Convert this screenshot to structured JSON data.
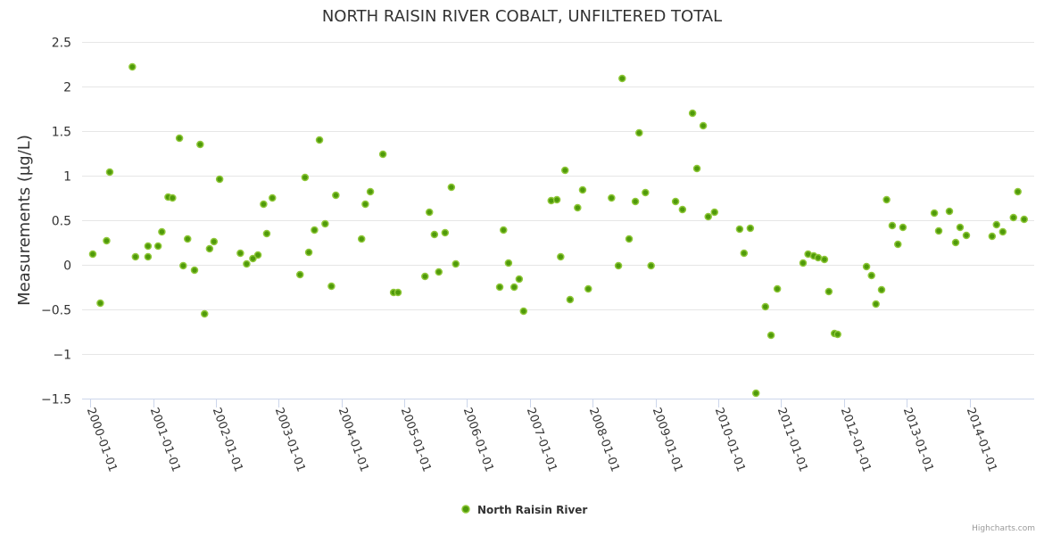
{
  "chart_data": {
    "type": "scatter",
    "title": "NORTH RAISIN RIVER COBALT, UNFILTERED TOTAL",
    "xlabel": "",
    "ylabel": "Measurements (µg/L)",
    "xlim": [
      1999.87,
      2015.03
    ],
    "ylim": [
      -1.5,
      2.5
    ],
    "yticks": [
      2.5,
      2,
      1.5,
      1,
      0.5,
      0,
      -0.5,
      -1,
      -1.5
    ],
    "ytick_labels": [
      "2.5",
      "2",
      "1.5",
      "1",
      "0.5",
      "0",
      "−0.5",
      "−1",
      "−1.5"
    ],
    "xticks": [
      2000,
      2001,
      2002,
      2003,
      2004,
      2005,
      2006,
      2007,
      2008,
      2009,
      2010,
      2011,
      2012,
      2013,
      2014
    ],
    "xtick_labels": [
      "2000-01-01",
      "2001-01-01",
      "2002-01-01",
      "2003-01-01",
      "2004-01-01",
      "2005-01-01",
      "2006-01-01",
      "2007-01-01",
      "2008-01-01",
      "2009-01-01",
      "2010-01-01",
      "2011-01-01",
      "2012-01-01",
      "2013-01-01",
      "2014-01-01"
    ],
    "grid": true,
    "legend_position": "bottom-center",
    "series": [
      {
        "name": "North Raisin River",
        "color": "#4f9a0a",
        "border_color": "#90c83a",
        "points": [
          [
            2000.04,
            0.12
          ],
          [
            2000.16,
            -0.43
          ],
          [
            2000.26,
            0.27
          ],
          [
            2000.31,
            1.04
          ],
          [
            2000.67,
            2.22
          ],
          [
            2000.72,
            0.09
          ],
          [
            2000.92,
            0.21
          ],
          [
            2000.92,
            0.09
          ],
          [
            2001.08,
            0.21
          ],
          [
            2001.14,
            0.37
          ],
          [
            2001.24,
            0.76
          ],
          [
            2001.31,
            0.75
          ],
          [
            2001.42,
            1.42
          ],
          [
            2001.48,
            -0.01
          ],
          [
            2001.55,
            0.29
          ],
          [
            2001.66,
            -0.06
          ],
          [
            2001.75,
            1.35
          ],
          [
            2001.82,
            -0.55
          ],
          [
            2001.9,
            0.18
          ],
          [
            2001.97,
            0.26
          ],
          [
            2002.06,
            0.96
          ],
          [
            2002.39,
            0.13
          ],
          [
            2002.49,
            0.01
          ],
          [
            2002.59,
            0.07
          ],
          [
            2002.67,
            0.11
          ],
          [
            2002.76,
            0.68
          ],
          [
            2002.81,
            0.35
          ],
          [
            2002.9,
            0.75
          ],
          [
            2003.34,
            -0.11
          ],
          [
            2003.42,
            0.98
          ],
          [
            2003.48,
            0.14
          ],
          [
            2003.57,
            0.39
          ],
          [
            2003.65,
            1.4
          ],
          [
            2003.74,
            0.46
          ],
          [
            2003.84,
            -0.24
          ],
          [
            2003.91,
            0.78
          ],
          [
            2004.32,
            0.29
          ],
          [
            2004.38,
            0.68
          ],
          [
            2004.46,
            0.82
          ],
          [
            2004.66,
            1.24
          ],
          [
            2004.83,
            -0.31
          ],
          [
            2004.9,
            -0.31
          ],
          [
            2005.33,
            -0.13
          ],
          [
            2005.4,
            0.59
          ],
          [
            2005.48,
            0.34
          ],
          [
            2005.55,
            -0.08
          ],
          [
            2005.65,
            0.36
          ],
          [
            2005.75,
            0.87
          ],
          [
            2005.82,
            0.01
          ],
          [
            2006.52,
            -0.25
          ],
          [
            2006.58,
            0.39
          ],
          [
            2006.66,
            0.02
          ],
          [
            2006.75,
            -0.25
          ],
          [
            2006.83,
            -0.16
          ],
          [
            2006.9,
            -0.52
          ],
          [
            2007.34,
            0.72
          ],
          [
            2007.43,
            0.73
          ],
          [
            2007.49,
            0.09
          ],
          [
            2007.56,
            1.06
          ],
          [
            2007.64,
            -0.39
          ],
          [
            2007.76,
            0.64
          ],
          [
            2007.84,
            0.84
          ],
          [
            2007.93,
            -0.27
          ],
          [
            2008.3,
            0.75
          ],
          [
            2008.41,
            -0.01
          ],
          [
            2008.47,
            2.09
          ],
          [
            2008.58,
            0.29
          ],
          [
            2008.68,
            0.71
          ],
          [
            2008.74,
            1.48
          ],
          [
            2008.84,
            0.81
          ],
          [
            2008.93,
            -0.01
          ],
          [
            2009.32,
            0.71
          ],
          [
            2009.43,
            0.62
          ],
          [
            2009.59,
            1.7
          ],
          [
            2009.66,
            1.08
          ],
          [
            2009.76,
            1.56
          ],
          [
            2009.84,
            0.54
          ],
          [
            2009.94,
            0.59
          ],
          [
            2010.34,
            0.4
          ],
          [
            2010.41,
            0.13
          ],
          [
            2010.51,
            0.41
          ],
          [
            2010.6,
            -1.44
          ],
          [
            2010.75,
            -0.47
          ],
          [
            2010.84,
            -0.79
          ],
          [
            2010.94,
            -0.27
          ],
          [
            2011.35,
            0.02
          ],
          [
            2011.43,
            0.12
          ],
          [
            2011.52,
            0.1
          ],
          [
            2011.59,
            0.08
          ],
          [
            2011.69,
            0.06
          ],
          [
            2011.76,
            -0.3
          ],
          [
            2011.85,
            -0.77
          ],
          [
            2011.9,
            -0.78
          ],
          [
            2012.36,
            -0.02
          ],
          [
            2012.44,
            -0.12
          ],
          [
            2012.51,
            -0.44
          ],
          [
            2012.6,
            -0.28
          ],
          [
            2012.68,
            0.73
          ],
          [
            2012.77,
            0.44
          ],
          [
            2012.86,
            0.23
          ],
          [
            2012.94,
            0.42
          ],
          [
            2013.44,
            0.58
          ],
          [
            2013.51,
            0.38
          ],
          [
            2013.68,
            0.6
          ],
          [
            2013.78,
            0.25
          ],
          [
            2013.85,
            0.42
          ],
          [
            2013.95,
            0.33
          ],
          [
            2014.36,
            0.32
          ],
          [
            2014.43,
            0.45
          ],
          [
            2014.53,
            0.37
          ],
          [
            2014.7,
            0.53
          ],
          [
            2014.77,
            0.82
          ],
          [
            2014.87,
            0.51
          ]
        ]
      }
    ],
    "credits": "Highcharts.com"
  }
}
